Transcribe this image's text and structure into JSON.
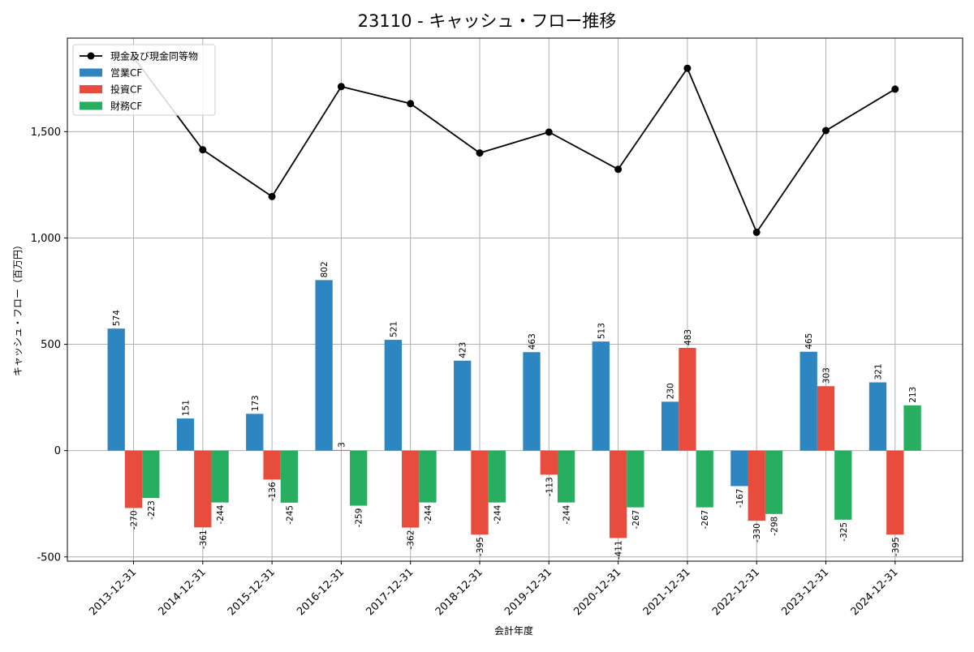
{
  "chart_data": {
    "type": "bar",
    "title": "23110 - キャッシュ・フロー推移",
    "xlabel": "会計年度",
    "ylabel": "キャッシュ・フロー（百万円）",
    "ylim": [
      -520,
      1940
    ],
    "yticks": [
      -500,
      0,
      500,
      1000,
      1500
    ],
    "ytick_labels": [
      "-500",
      "0",
      "500",
      "1,000",
      "1,500"
    ],
    "grid": true,
    "legend_position": "top-left",
    "categories": [
      "2013-12-31",
      "2014-12-31",
      "2015-12-31",
      "2016-12-31",
      "2017-12-31",
      "2018-12-31",
      "2019-12-31",
      "2020-12-31",
      "2021-12-31",
      "2022-12-31",
      "2023-12-31",
      "2024-12-31"
    ],
    "series": [
      {
        "name": "営業CF",
        "type": "bar",
        "color": "#2e86c1",
        "values": [
          574,
          151,
          173,
          802,
          521,
          423,
          463,
          513,
          230,
          -167,
          465,
          321
        ],
        "labels": [
          "574",
          "151",
          "173",
          "802",
          "521",
          "423",
          "463",
          "513",
          "230",
          "-167",
          "465",
          "321"
        ]
      },
      {
        "name": "投資CF",
        "type": "bar",
        "color": "#e74c3c",
        "values": [
          -270,
          -361,
          -136,
          3,
          -362,
          -395,
          -113,
          -411,
          483,
          -330,
          303,
          -395
        ],
        "labels": [
          "-270",
          "-361",
          "-136",
          "3",
          "-362",
          "-395",
          "-113",
          "-411",
          "483",
          "-330",
          "303",
          "-395"
        ]
      },
      {
        "name": "財務CF",
        "type": "bar",
        "color": "#27ae60",
        "values": [
          -223,
          -244,
          -245,
          -259,
          -244,
          -244,
          -244,
          -267,
          -267,
          -298,
          -325,
          213
        ],
        "labels": [
          "-223",
          "-244",
          "-245",
          "-259",
          "-244",
          "-244",
          "-244",
          "-267",
          "-267",
          "-298",
          "-325",
          "213"
        ]
      },
      {
        "name": "現金及び現金同等物",
        "type": "line",
        "color": "#000000",
        "values": [
          1850,
          1415,
          1195,
          1712,
          1632,
          1400,
          1498,
          1323,
          1798,
          1027,
          1505,
          1700
        ]
      }
    ],
    "legend_order": [
      "現金及び現金同等物",
      "営業CF",
      "投資CF",
      "財務CF"
    ]
  }
}
